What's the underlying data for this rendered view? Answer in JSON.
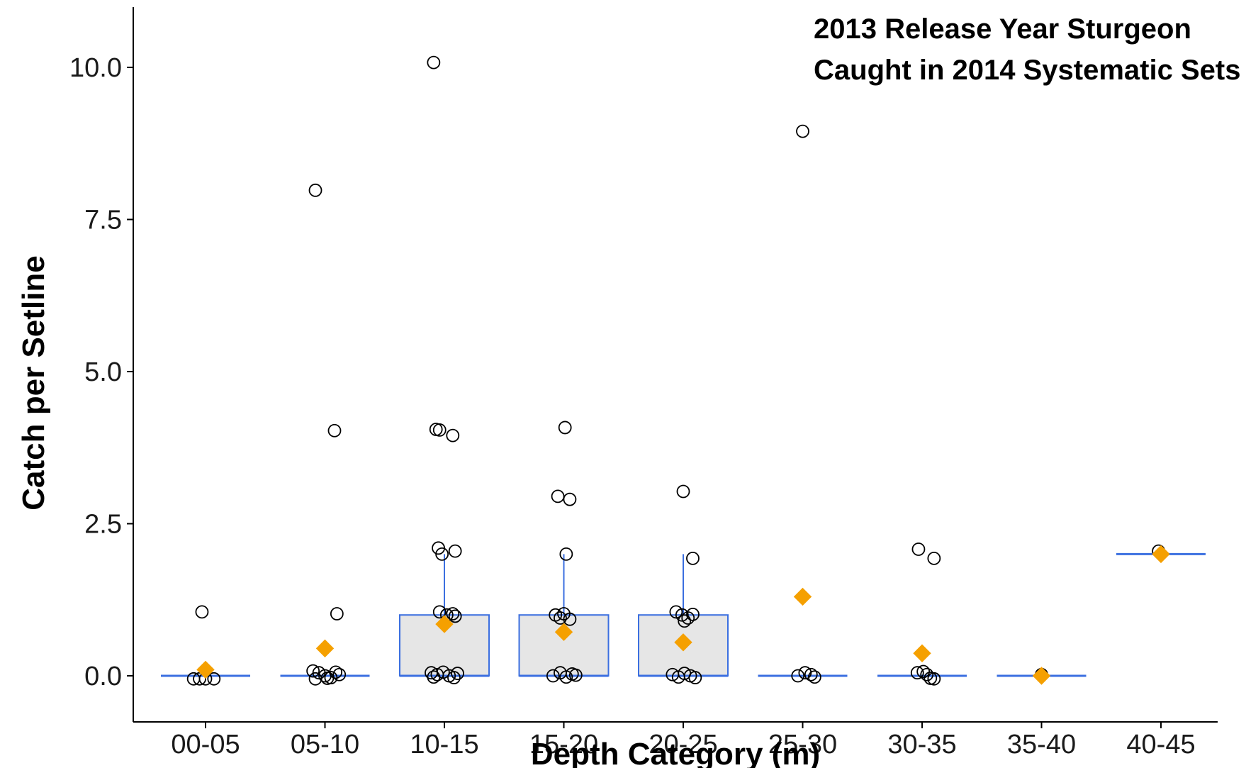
{
  "chart_data": {
    "type": "box",
    "title_lines": [
      "2013 Release Year Sturgeon",
      "Caught in 2014 Systematic Sets"
    ],
    "xlabel": "Depth Category (m)",
    "ylabel": "Catch per Setline",
    "ylim": [
      -0.2,
      11.0
    ],
    "yticks": [
      0.0,
      2.5,
      5.0,
      7.5,
      10.0
    ],
    "ytick_labels": [
      "0.0",
      "2.5",
      "5.0",
      "7.5",
      "10.0"
    ],
    "categories": [
      "00-05",
      "05-10",
      "10-15",
      "15-20",
      "20-25",
      "25-30",
      "30-35",
      "35-40",
      "40-45"
    ],
    "grid": false,
    "colors": {
      "box_stroke": "#3b6fe0",
      "box_fill": "#e6e6e6",
      "mean_marker": "#f5a000",
      "point_stroke": "#000000",
      "axis": "#000000"
    },
    "boxes": [
      {
        "category": "00-05",
        "q1": 0,
        "median": 0,
        "q3": 0,
        "whisker_low": 0,
        "whisker_high": 0,
        "mean": 0.1
      },
      {
        "category": "05-10",
        "q1": 0,
        "median": 0,
        "q3": 0,
        "whisker_low": 0,
        "whisker_high": 0,
        "mean": 0.45
      },
      {
        "category": "10-15",
        "q1": 0,
        "median": 0,
        "q3": 1,
        "whisker_low": 0,
        "whisker_high": 2,
        "mean": 0.85
      },
      {
        "category": "15-20",
        "q1": 0,
        "median": 0,
        "q3": 1,
        "whisker_low": 0,
        "whisker_high": 2,
        "mean": 0.72
      },
      {
        "category": "20-25",
        "q1": 0,
        "median": 0,
        "q3": 1,
        "whisker_low": 0,
        "whisker_high": 2,
        "mean": 0.55
      },
      {
        "category": "25-30",
        "q1": 0,
        "median": 0,
        "q3": 0,
        "whisker_low": 0,
        "whisker_high": 0,
        "mean": 1.3
      },
      {
        "category": "30-35",
        "q1": 0,
        "median": 0,
        "q3": 0,
        "whisker_low": 0,
        "whisker_high": 0,
        "mean": 0.37
      },
      {
        "category": "35-40",
        "q1": 0,
        "median": 0,
        "q3": 0,
        "whisker_low": 0,
        "whisker_high": 0,
        "mean": 0.0
      },
      {
        "category": "40-45",
        "q1": 2,
        "median": 2,
        "q3": 2,
        "whisker_low": 2,
        "whisker_high": 2,
        "mean": 2.0
      }
    ],
    "points": [
      {
        "category": "00-05",
        "y": 1.05,
        "jitter": -0.03
      },
      {
        "category": "00-05",
        "y": -0.05,
        "jitter": -0.1
      },
      {
        "category": "00-05",
        "y": -0.05,
        "jitter": -0.05
      },
      {
        "category": "00-05",
        "y": -0.05,
        "jitter": 0.0
      },
      {
        "category": "00-05",
        "y": -0.05,
        "jitter": 0.07
      },
      {
        "category": "05-10",
        "y": 7.98,
        "jitter": -0.08
      },
      {
        "category": "05-10",
        "y": 4.03,
        "jitter": 0.08
      },
      {
        "category": "05-10",
        "y": 1.02,
        "jitter": 0.1
      },
      {
        "category": "05-10",
        "y": 0.08,
        "jitter": -0.1
      },
      {
        "category": "05-10",
        "y": 0.05,
        "jitter": -0.05
      },
      {
        "category": "05-10",
        "y": 0.0,
        "jitter": 0.0
      },
      {
        "category": "05-10",
        "y": -0.03,
        "jitter": 0.05
      },
      {
        "category": "05-10",
        "y": 0.06,
        "jitter": 0.09
      },
      {
        "category": "05-10",
        "y": -0.05,
        "jitter": -0.08
      },
      {
        "category": "05-10",
        "y": 0.02,
        "jitter": 0.12
      },
      {
        "category": "05-10",
        "y": -0.04,
        "jitter": 0.02
      },
      {
        "category": "10-15",
        "y": 10.08,
        "jitter": -0.09
      },
      {
        "category": "10-15",
        "y": 4.05,
        "jitter": -0.07
      },
      {
        "category": "10-15",
        "y": 4.04,
        "jitter": -0.04
      },
      {
        "category": "10-15",
        "y": 3.95,
        "jitter": 0.07
      },
      {
        "category": "10-15",
        "y": 2.1,
        "jitter": -0.05
      },
      {
        "category": "10-15",
        "y": 2.05,
        "jitter": 0.09
      },
      {
        "category": "10-15",
        "y": 2.0,
        "jitter": -0.02
      },
      {
        "category": "10-15",
        "y": 1.05,
        "jitter": -0.04
      },
      {
        "category": "10-15",
        "y": 1.0,
        "jitter": 0.02
      },
      {
        "category": "10-15",
        "y": 1.02,
        "jitter": 0.07
      },
      {
        "category": "10-15",
        "y": 0.98,
        "jitter": 0.09
      },
      {
        "category": "10-15",
        "y": 0.05,
        "jitter": -0.11
      },
      {
        "category": "10-15",
        "y": 0.02,
        "jitter": -0.06
      },
      {
        "category": "10-15",
        "y": 0.06,
        "jitter": -0.01
      },
      {
        "category": "10-15",
        "y": 0.0,
        "jitter": 0.04
      },
      {
        "category": "10-15",
        "y": -0.03,
        "jitter": 0.08
      },
      {
        "category": "10-15",
        "y": 0.04,
        "jitter": 0.11
      },
      {
        "category": "10-15",
        "y": -0.02,
        "jitter": -0.09
      },
      {
        "category": "15-20",
        "y": 4.08,
        "jitter": 0.01
      },
      {
        "category": "15-20",
        "y": 2.95,
        "jitter": -0.05
      },
      {
        "category": "15-20",
        "y": 2.9,
        "jitter": 0.05
      },
      {
        "category": "15-20",
        "y": 2.0,
        "jitter": 0.02
      },
      {
        "category": "15-20",
        "y": 1.0,
        "jitter": -0.07
      },
      {
        "category": "15-20",
        "y": 0.95,
        "jitter": -0.03
      },
      {
        "category": "15-20",
        "y": 1.02,
        "jitter": 0.0
      },
      {
        "category": "15-20",
        "y": 0.93,
        "jitter": 0.05
      },
      {
        "category": "15-20",
        "y": 0.0,
        "jitter": -0.09
      },
      {
        "category": "15-20",
        "y": 0.05,
        "jitter": -0.03
      },
      {
        "category": "15-20",
        "y": -0.02,
        "jitter": 0.02
      },
      {
        "category": "15-20",
        "y": 0.03,
        "jitter": 0.07
      },
      {
        "category": "15-20",
        "y": 0.01,
        "jitter": 0.1
      },
      {
        "category": "20-25",
        "y": 3.03,
        "jitter": 0.0
      },
      {
        "category": "20-25",
        "y": 1.93,
        "jitter": 0.08
      },
      {
        "category": "20-25",
        "y": 1.05,
        "jitter": -0.06
      },
      {
        "category": "20-25",
        "y": 1.0,
        "jitter": -0.01
      },
      {
        "category": "20-25",
        "y": 0.95,
        "jitter": 0.04
      },
      {
        "category": "20-25",
        "y": 1.01,
        "jitter": 0.08
      },
      {
        "category": "20-25",
        "y": 0.9,
        "jitter": 0.01
      },
      {
        "category": "20-25",
        "y": 0.02,
        "jitter": -0.09
      },
      {
        "category": "20-25",
        "y": -0.02,
        "jitter": -0.04
      },
      {
        "category": "20-25",
        "y": 0.04,
        "jitter": 0.01
      },
      {
        "category": "20-25",
        "y": 0.0,
        "jitter": 0.06
      },
      {
        "category": "20-25",
        "y": -0.03,
        "jitter": 0.1
      },
      {
        "category": "25-30",
        "y": 8.95,
        "jitter": 0.0
      },
      {
        "category": "25-30",
        "y": 0.0,
        "jitter": -0.04
      },
      {
        "category": "25-30",
        "y": 0.05,
        "jitter": 0.02
      },
      {
        "category": "25-30",
        "y": 0.02,
        "jitter": 0.07
      },
      {
        "category": "25-30",
        "y": -0.02,
        "jitter": 0.1
      },
      {
        "category": "30-35",
        "y": 2.08,
        "jitter": -0.03
      },
      {
        "category": "30-35",
        "y": 1.93,
        "jitter": 0.1
      },
      {
        "category": "30-35",
        "y": 0.05,
        "jitter": -0.04
      },
      {
        "category": "30-35",
        "y": 0.07,
        "jitter": 0.01
      },
      {
        "category": "30-35",
        "y": 0.02,
        "jitter": 0.04
      },
      {
        "category": "30-35",
        "y": -0.04,
        "jitter": 0.07
      },
      {
        "category": "30-35",
        "y": -0.05,
        "jitter": 0.1
      },
      {
        "category": "35-40",
        "y": 0.02,
        "jitter": 0.0
      },
      {
        "category": "40-45",
        "y": 2.05,
        "jitter": -0.02
      }
    ]
  }
}
